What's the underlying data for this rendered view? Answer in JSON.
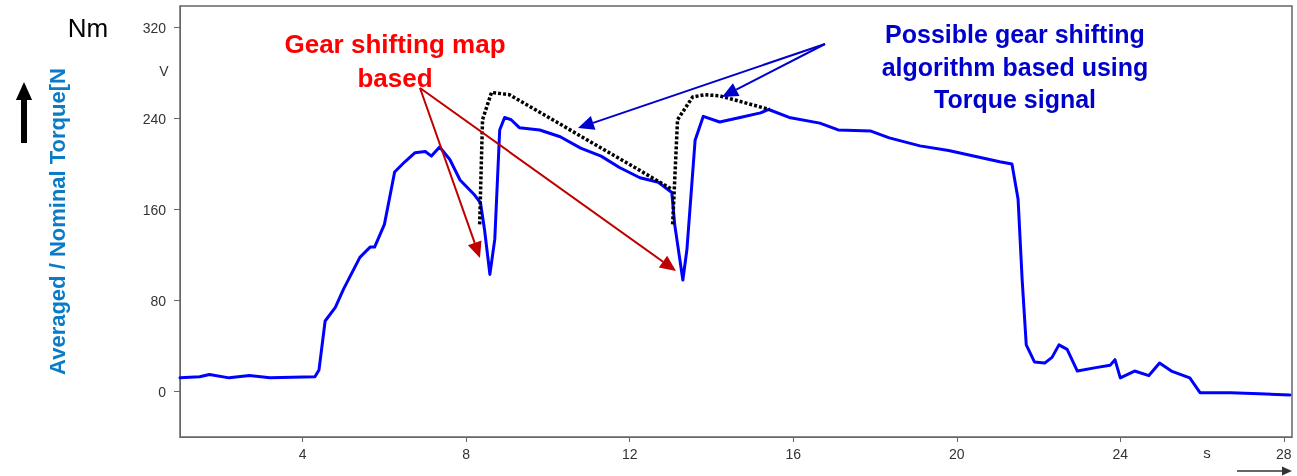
{
  "chart_data": {
    "type": "line",
    "ylabel": "Averaged / Nominal Torque[N",
    "xlabel": "s",
    "annotations": [
      "Nm",
      "V",
      "Gear shifting map based",
      "Possible gear shifting algorithm based using Torque signal"
    ],
    "xlim": [
      1,
      28.2
    ],
    "xticks": [
      4,
      8,
      12,
      16,
      20,
      24,
      28
    ],
    "ylim": [
      -40,
      339
    ],
    "yticks": [
      0,
      80,
      160,
      240,
      320
    ],
    "grid": false,
    "marker": "none",
    "series": [
      {
        "color": "#0000ff",
        "line_style": "solid",
        "x": [
          1.0,
          1.48,
          1.72,
          2.2,
          2.7,
          3.2,
          4.3,
          4.4,
          4.55,
          4.8,
          5.0,
          5.4,
          5.65,
          5.76,
          6.0,
          6.25,
          6.5,
          6.75,
          7.0,
          7.15,
          7.35,
          7.6,
          7.85,
          8.2,
          8.35,
          8.45,
          8.58,
          8.7,
          8.82,
          8.94,
          9.1,
          9.3,
          9.8,
          10.3,
          10.8,
          11.3,
          11.75,
          12.25,
          12.7,
          13.03,
          13.1,
          13.3,
          13.4,
          13.6,
          13.8,
          14.2,
          14.7,
          15.2,
          15.4,
          15.9,
          16.65,
          17.1,
          17.9,
          18.35,
          19.1,
          19.8,
          20.55,
          21.05,
          21.35,
          21.5,
          21.6,
          21.7,
          21.9,
          22.15,
          22.33,
          22.5,
          22.7,
          22.95,
          23.4,
          23.75,
          23.87,
          24.0,
          24.35,
          24.7,
          24.96,
          25.25,
          25.7,
          25.95,
          26.7,
          27.4,
          28.15
        ],
        "values": [
          12,
          13,
          15,
          12,
          14,
          12,
          13,
          19,
          62,
          74,
          90,
          118,
          127,
          127,
          147,
          193,
          202,
          210,
          211,
          207,
          215,
          204,
          186,
          173,
          166,
          142,
          103,
          134,
          230,
          241,
          239,
          232,
          230,
          224,
          214,
          207,
          197,
          188,
          184,
          175,
          147,
          98,
          125,
          221,
          242,
          237,
          241,
          245,
          248,
          241,
          236,
          230,
          229,
          223,
          216,
          212,
          206,
          202,
          200,
          169,
          98,
          41,
          26,
          25,
          30,
          41,
          37,
          18,
          21,
          23,
          28,
          12,
          18,
          14,
          25,
          18,
          12,
          -1,
          -1,
          -2,
          -3
        ]
      },
      {
        "color": "#000000",
        "line_style": "dotted",
        "x": [
          8.33,
          8.4,
          8.62,
          9.06,
          13.03,
          13.04,
          13.05,
          13.17,
          13.54,
          13.83,
          14.2,
          15.42
        ],
        "values": [
          147,
          239,
          263,
          261,
          178,
          null,
          147,
          239,
          259,
          261,
          260,
          248
        ]
      }
    ]
  }
}
